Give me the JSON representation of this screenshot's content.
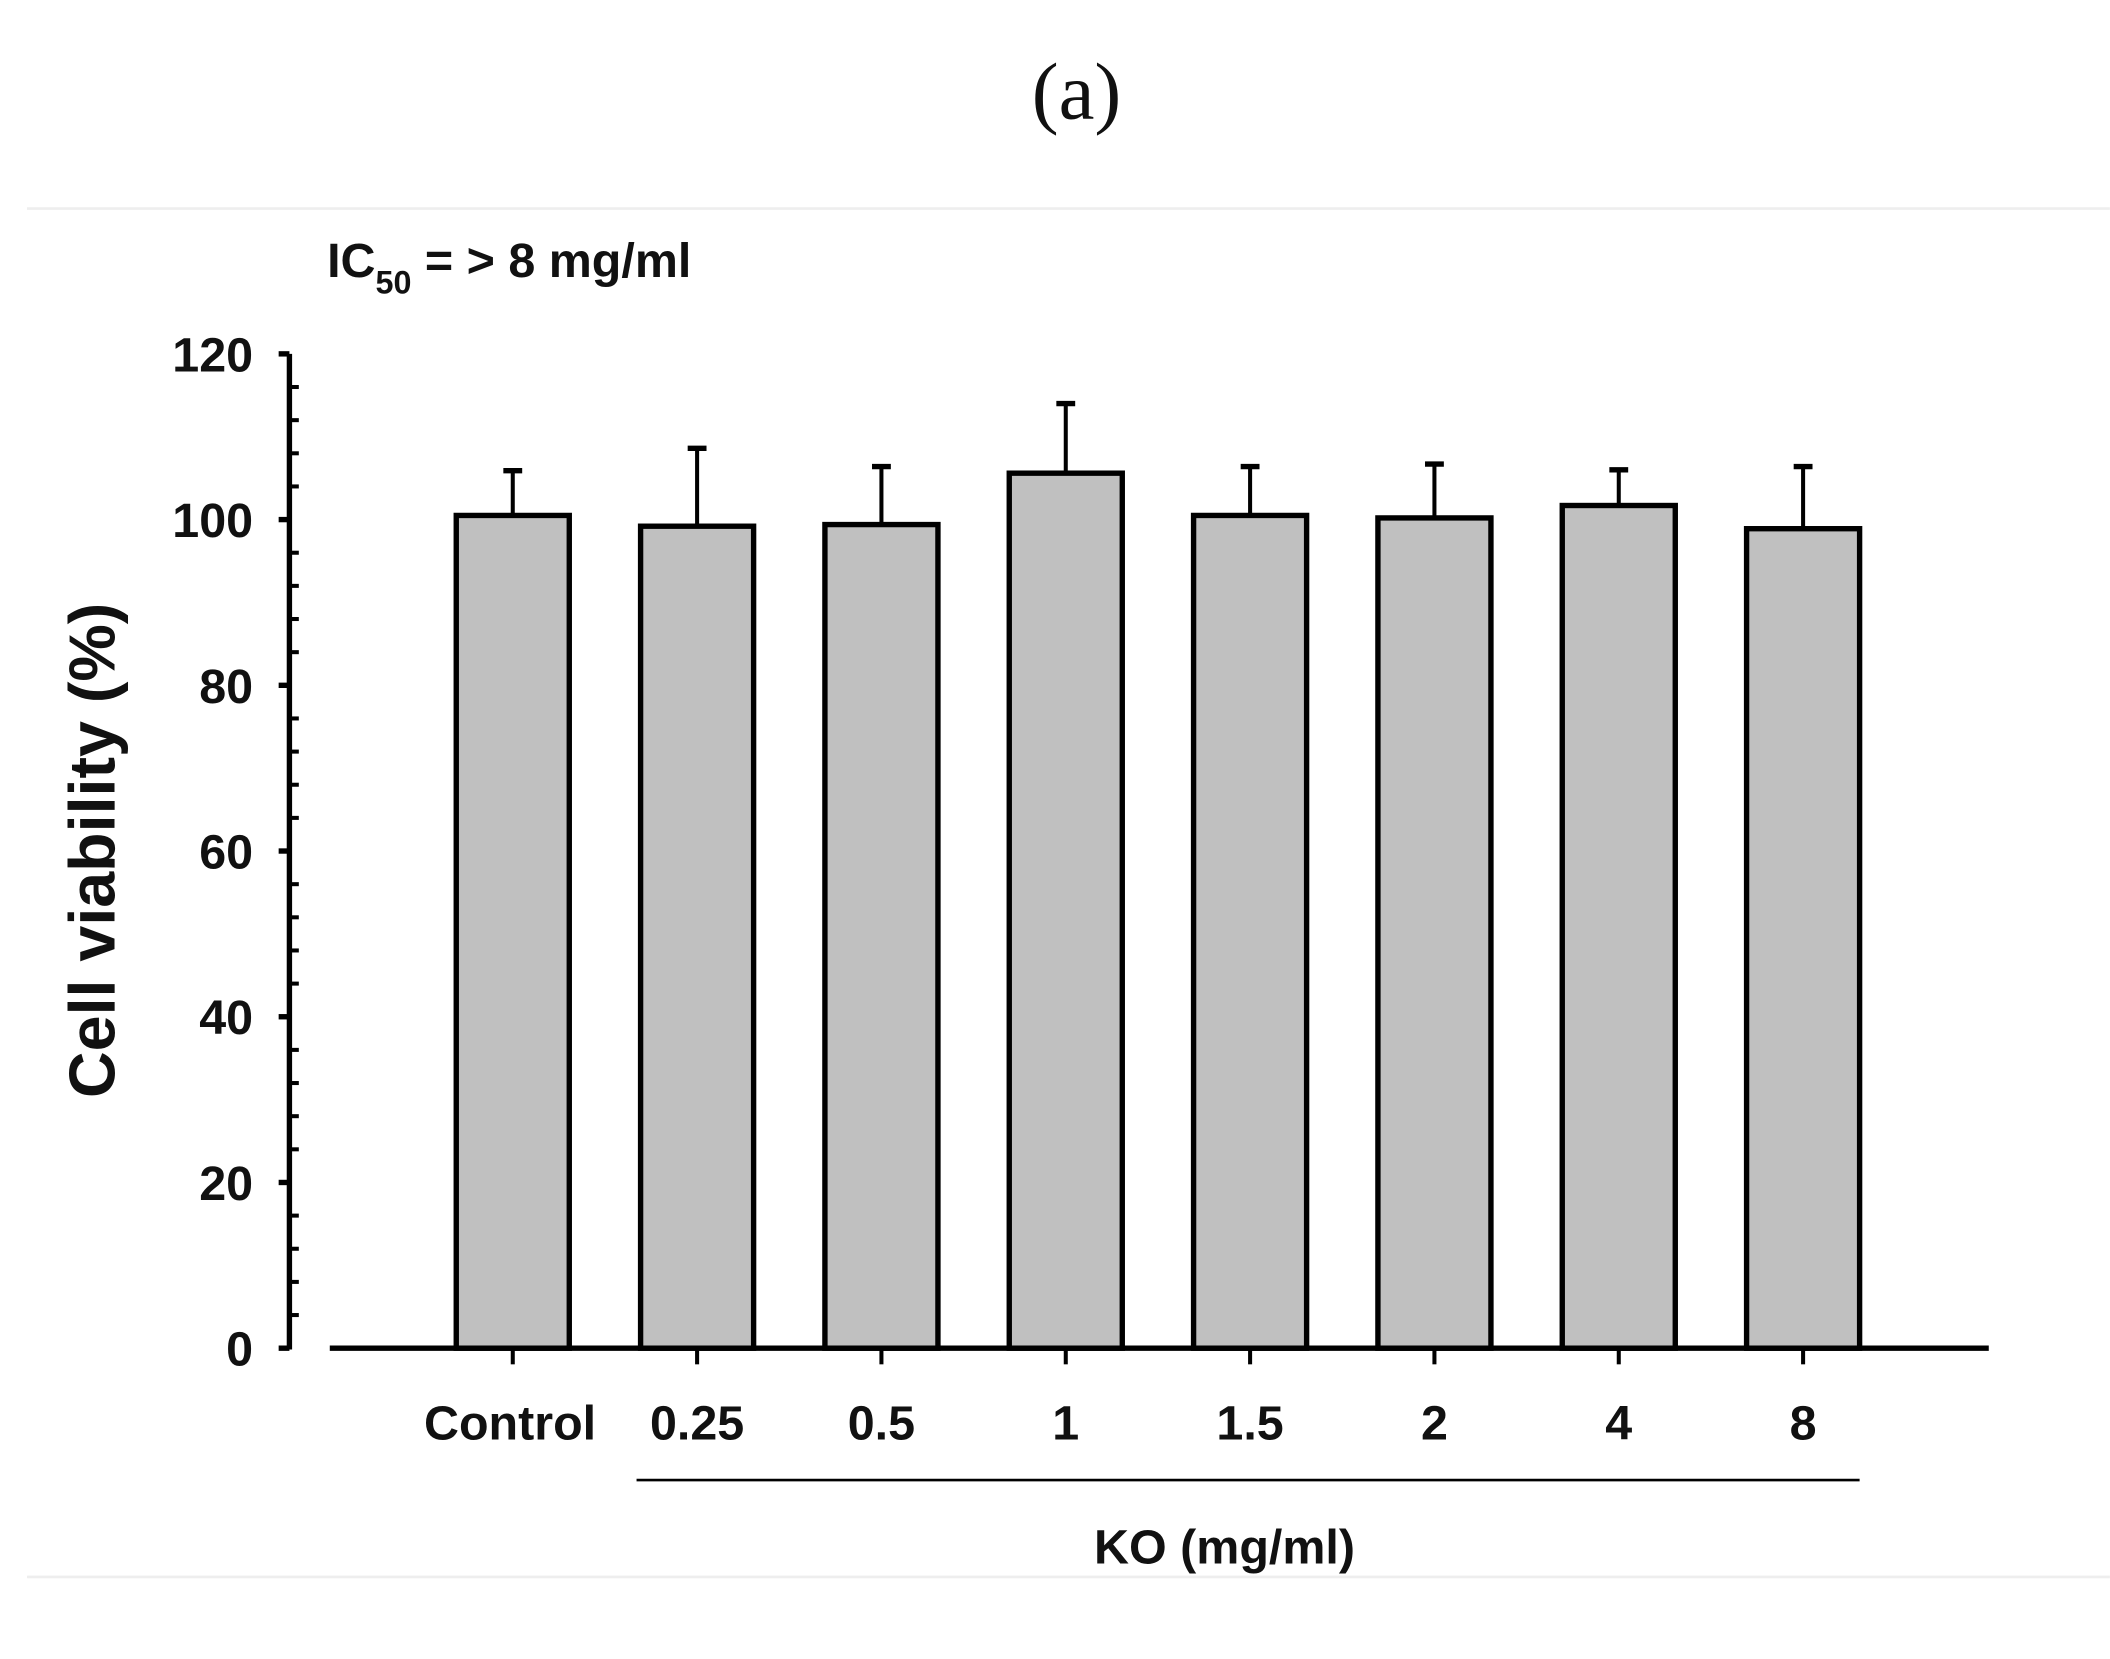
{
  "panel_label": "(a)",
  "chart_data": {
    "type": "bar",
    "title": "",
    "annotation": {
      "prefix": "IC",
      "subscript": "50",
      "suffix": " = > 8 mg/ml"
    },
    "categories": [
      "Control",
      "0.25",
      "0.5",
      "1",
      "1.5",
      "2",
      "4",
      "8"
    ],
    "values": [
      100.5,
      99.2,
      99.4,
      105.6,
      100.5,
      100.2,
      101.7,
      98.9
    ],
    "error_upper": [
      5.4,
      9.4,
      7.0,
      8.4,
      5.9,
      6.5,
      4.3,
      7.5
    ],
    "xlabel": "KO (mg/ml)",
    "ylabel": "Cell viability (%)",
    "ylim": [
      0,
      120
    ],
    "yticks": [
      0,
      20,
      40,
      60,
      80,
      100,
      120
    ],
    "bar_color": "#c0c0c0",
    "grid": false,
    "legend": "none"
  }
}
